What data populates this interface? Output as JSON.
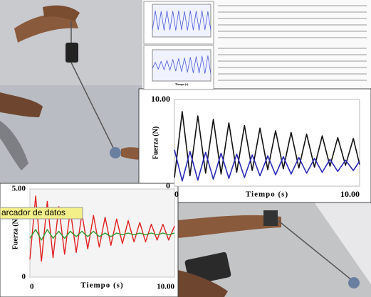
{
  "chart_data": [
    {
      "type": "line",
      "x_label": "Tiempo (s)",
      "y_label": "Fuerza (N)",
      "x": [
        0,
        0.42,
        0.84,
        1.26,
        1.68,
        2.1,
        2.52,
        2.94,
        3.36,
        3.78,
        4.2,
        4.62,
        5.04,
        5.46,
        5.88,
        6.3,
        6.72,
        7.14,
        7.56,
        7.98,
        8.4,
        8.82,
        9.24,
        9.66,
        10
      ],
      "series": [
        {
          "color": "#111111",
          "values": [
            1.0,
            8.6,
            1.2,
            8.1,
            1.5,
            7.7,
            1.4,
            7.3,
            1.6,
            7.0,
            1.8,
            6.7,
            1.9,
            6.4,
            2.0,
            6.2,
            2.1,
            6.0,
            2.2,
            5.8,
            2.3,
            5.6,
            2.4,
            5.5,
            2.5
          ]
        },
        {
          "color": "#2a2ab8",
          "values": [
            4.2,
            0.6,
            4.0,
            0.7,
            3.9,
            0.8,
            3.8,
            0.9,
            3.7,
            1.0,
            3.6,
            1.2,
            3.5,
            1.3,
            3.4,
            1.4,
            3.3,
            1.5,
            3.2,
            1.6,
            3.1,
            1.7,
            3.0,
            1.8,
            2.9
          ]
        }
      ],
      "xlim": [
        0,
        10
      ],
      "ylim": [
        0,
        10
      ],
      "xticks": [
        0,
        {
          "value": 10,
          "label": "10.00"
        }
      ],
      "yticks": [
        0,
        {
          "value": 10,
          "label": "10.00"
        }
      ],
      "grid": true
    },
    {
      "type": "line",
      "x_label": "Tiempo (s)",
      "y_label": "Fuerza (N)",
      "annotation": "arcador de datos",
      "x": [
        0,
        0.4,
        0.8,
        1.2,
        1.6,
        2,
        2.4,
        2.8,
        3.2,
        3.6,
        4,
        4.4,
        4.8,
        5.2,
        5.6,
        6,
        6.4,
        6.8,
        7.2,
        7.6,
        8,
        8.4,
        8.8,
        9.2,
        9.6,
        10
      ],
      "series": [
        {
          "color": "#e02020",
          "values": [
            1.0,
            4.6,
            0.9,
            4.3,
            1.1,
            4.0,
            1.3,
            3.8,
            1.4,
            3.6,
            1.6,
            3.5,
            1.7,
            3.4,
            1.8,
            3.3,
            1.9,
            3.2,
            2.0,
            3.1,
            2.0,
            3.0,
            2.1,
            3.0,
            2.1,
            2.9
          ]
        },
        {
          "color": "#2e9a2e",
          "values": [
            2.2,
            2.7,
            2.1,
            2.7,
            2.2,
            2.6,
            2.2,
            2.6,
            2.3,
            2.6,
            2.3,
            2.6,
            2.3,
            2.5,
            2.3,
            2.5,
            2.4,
            2.5,
            2.4,
            2.5,
            2.4,
            2.5,
            2.4,
            2.5,
            2.4,
            2.5
          ]
        }
      ],
      "xlim": [
        0,
        10
      ],
      "ylim": [
        0,
        5
      ],
      "xticks": [
        0,
        {
          "value": 10,
          "label": "10.00"
        }
      ],
      "yticks": [
        0,
        {
          "value": 5,
          "label": "5.00"
        }
      ],
      "grid": true
    },
    {
      "type": "line",
      "x": [
        0,
        0.5,
        1,
        1.5,
        2,
        2.5,
        3,
        3.5,
        4,
        4.5,
        5,
        5.5,
        6,
        6.5,
        7,
        7.5,
        8,
        8.5,
        9,
        9.5,
        10
      ],
      "series": [
        {
          "color": "#4a5ad8",
          "values": [
            2,
            8,
            2.2,
            7.8,
            2,
            8,
            2.1,
            7.9,
            2,
            8,
            2.2,
            7.8,
            2,
            8,
            2.1,
            7.9,
            2,
            8,
            2.2,
            7.8,
            2
          ]
        }
      ],
      "xlim": [
        0,
        10
      ],
      "ylim": [
        0,
        10
      ]
    },
    {
      "type": "line",
      "x_label": "Tiempo (s)",
      "x": [
        0,
        0.5,
        1,
        1.5,
        2,
        2.5,
        3,
        3.5,
        4,
        4.5,
        5,
        5.5,
        6,
        6.5,
        7,
        7.5,
        8,
        8.5,
        9,
        9.5,
        10
      ],
      "series": [
        {
          "color": "#4a5ad8",
          "values": [
            4,
            6,
            3.8,
            6.3,
            3.6,
            6.6,
            3.4,
            6.9,
            3.2,
            7.2,
            3,
            7.4,
            2.8,
            7.6,
            2.6,
            7.8,
            2.5,
            8,
            2.4,
            8.1,
            2.3
          ]
        }
      ],
      "xlim": [
        0,
        10
      ],
      "ylim": [
        0,
        10
      ]
    }
  ]
}
